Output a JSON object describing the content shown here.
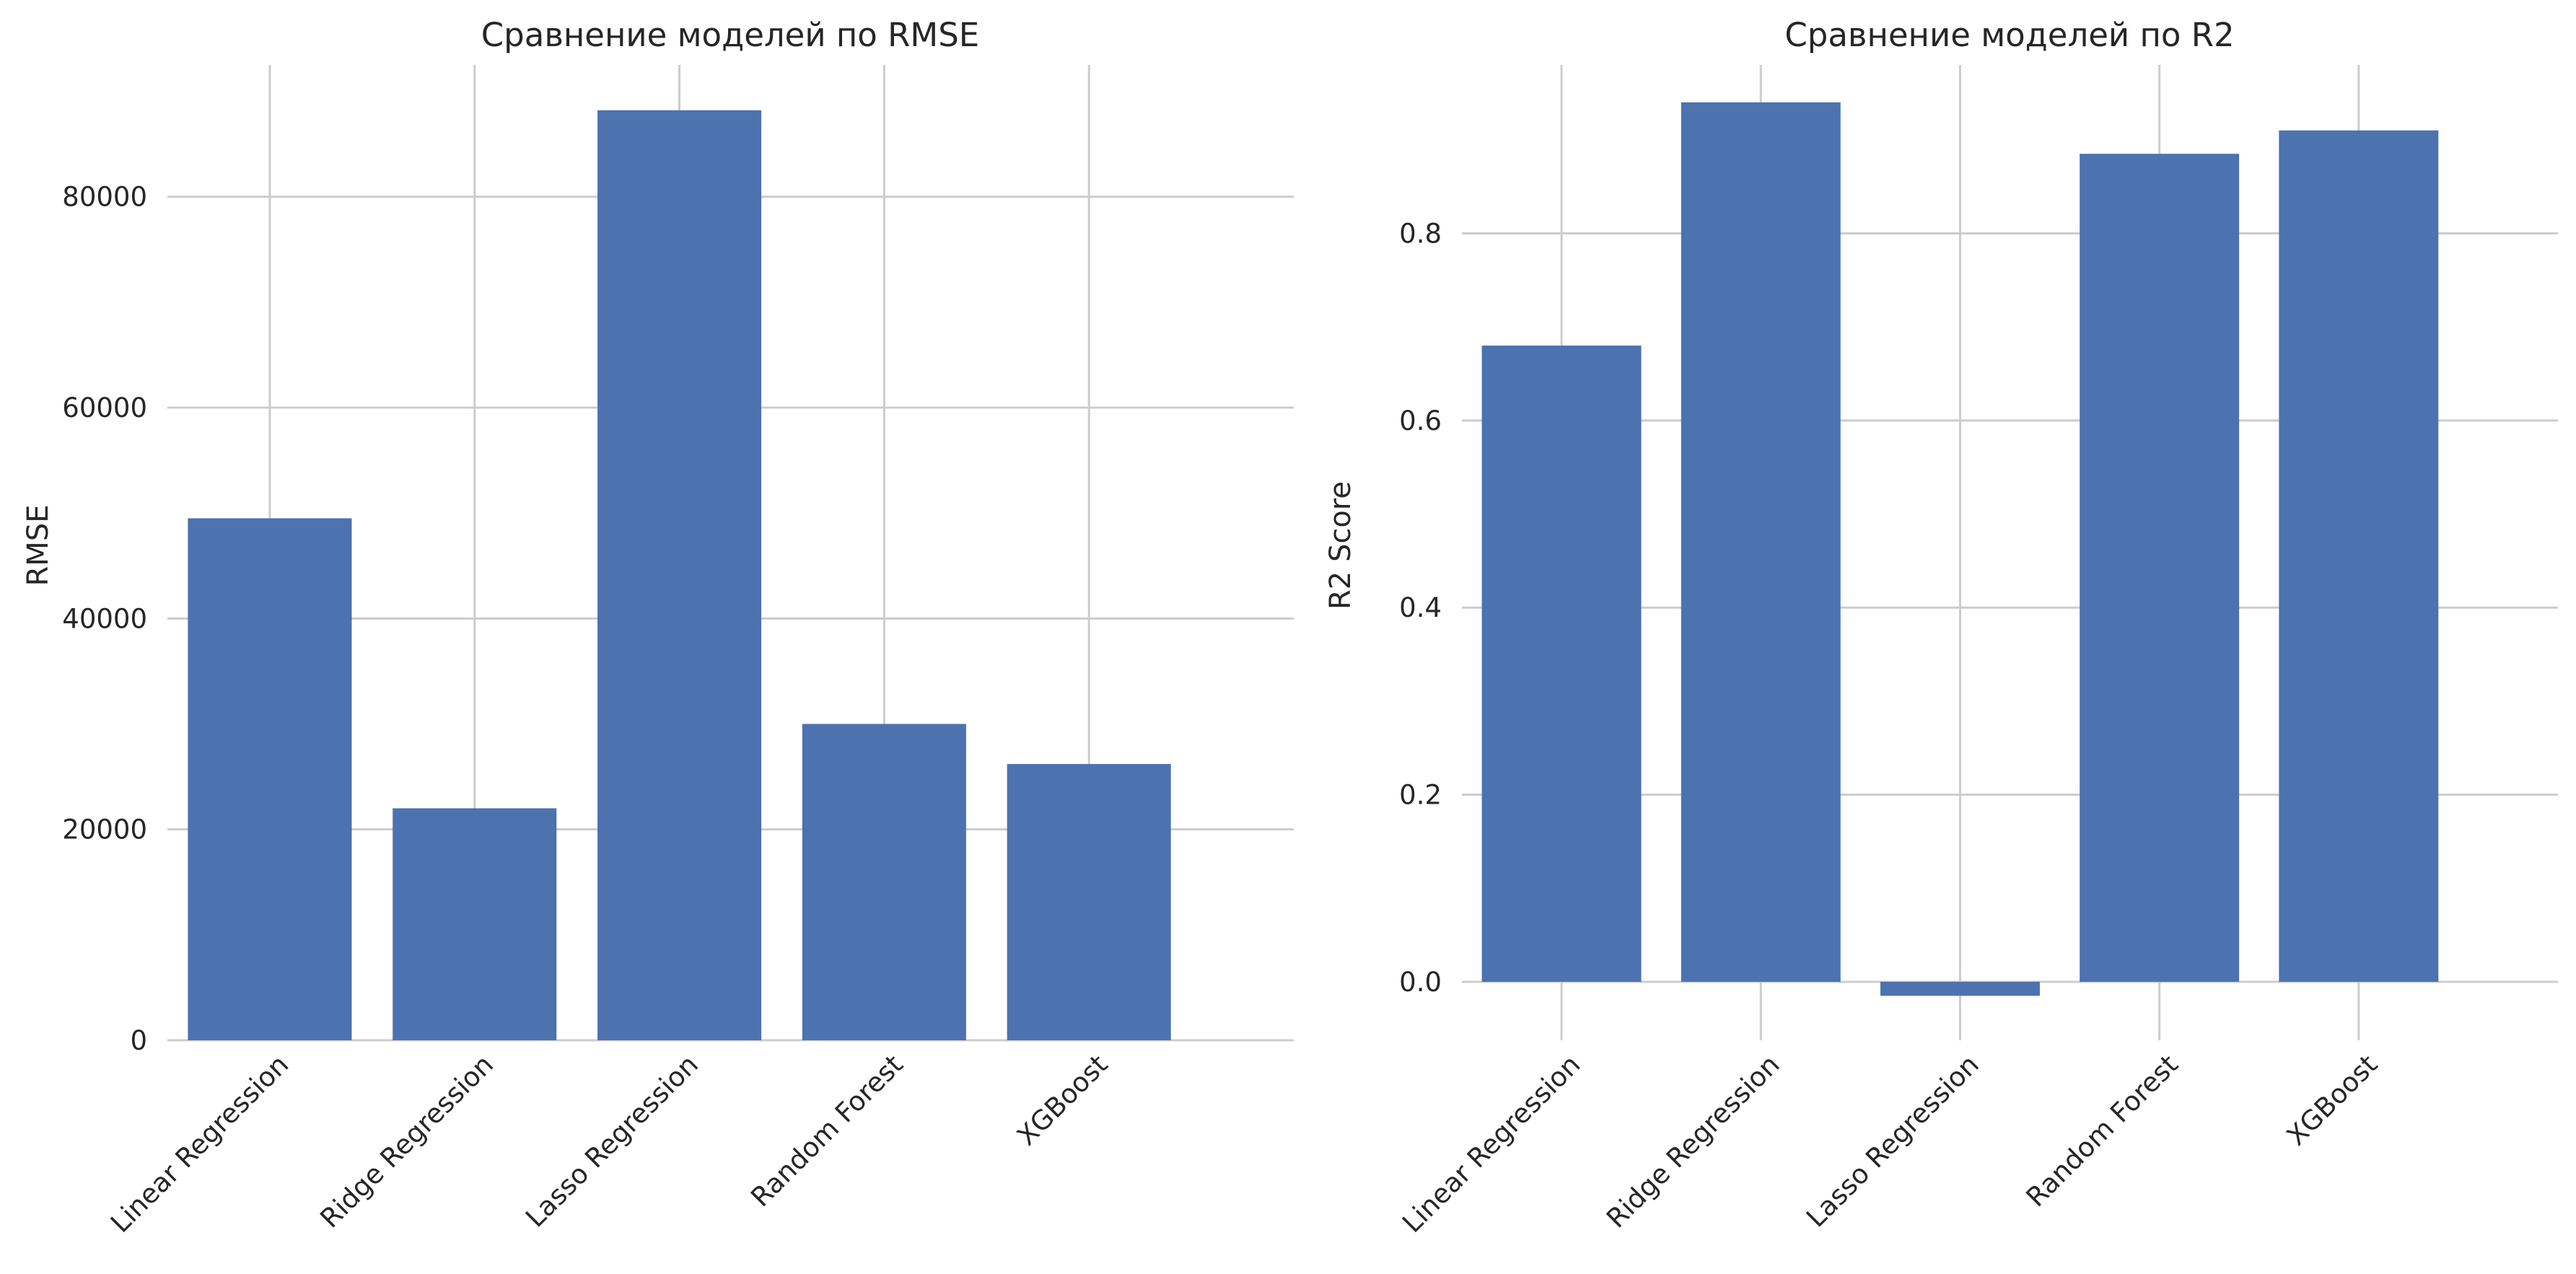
{
  "chart_data": [
    {
      "type": "bar",
      "title": "Сравнение моделей по RMSE",
      "xlabel": "",
      "ylabel": "RMSE",
      "categories": [
        "Linear Regression",
        "Ridge Regression",
        "Lasso Regression",
        "Random Forest",
        "XGBoost"
      ],
      "values": [
        49500,
        22000,
        88200,
        30000,
        26200
      ],
      "yticks": [
        0,
        20000,
        40000,
        60000,
        80000
      ],
      "ylim": [
        0,
        92500
      ],
      "grid": true,
      "bar_color": "#4c72b0",
      "grid_color": "#cccccc"
    },
    {
      "type": "bar",
      "title": "Сравнение моделей по R2",
      "xlabel": "",
      "ylabel": "R2 Score",
      "categories": [
        "Linear Regression",
        "Ridge Regression",
        "Lasso Regression",
        "Random Forest",
        "XGBoost"
      ],
      "values": [
        0.68,
        0.94,
        -0.015,
        0.885,
        0.91
      ],
      "yticks": [
        0.0,
        0.2,
        0.4,
        0.6,
        0.8
      ],
      "ylim": [
        -0.0625,
        0.98
      ],
      "grid": true,
      "bar_color": "#4c72b0",
      "grid_color": "#cccccc"
    }
  ]
}
